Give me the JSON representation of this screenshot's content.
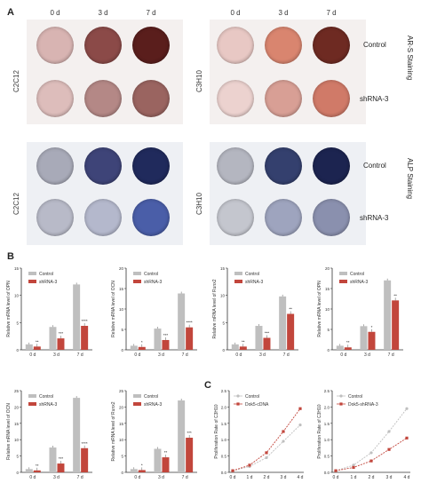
{
  "panels": {
    "a": "A",
    "b": "B",
    "c": "C"
  },
  "timepoints": [
    "0 d",
    "3 d",
    "7 d"
  ],
  "cell_lines": {
    "left": "C2C12",
    "right": "C3H10"
  },
  "groups": {
    "control": "Control",
    "shrna": "shRNA-3"
  },
  "stains": {
    "ars": "AR-S Staining",
    "alp": "ALP Staining"
  },
  "colors": {
    "control": "#bfbfbf",
    "shrna": "#c2463c",
    "ars_c2c12_ctrl": [
      "#d8b4b2",
      "#8b4a48",
      "#5a1e1c"
    ],
    "ars_c2c12_sh": [
      "#ddbdbb",
      "#b48886",
      "#9a6460"
    ],
    "ars_c3h10_ctrl": [
      "#e8c8c4",
      "#d9856f",
      "#6e2a22"
    ],
    "ars_c3h10_sh": [
      "#ecd2cf",
      "#d89f95",
      "#d07a68"
    ],
    "alp_c2c12_ctrl": [
      "#a8aab8",
      "#3e4478",
      "#202a5c"
    ],
    "alp_c2c12_sh": [
      "#b8bac8",
      "#b4b8cc",
      "#4a5ea8"
    ],
    "alp_c3h10_ctrl": [
      "#b4b6c0",
      "#34406e",
      "#1c2450"
    ],
    "alp_c3h10_sh": [
      "#c4c6ce",
      "#9ea4be",
      "#8a90ae"
    ]
  },
  "chart_data": [
    {
      "type": "bar",
      "ylabel": "Relative mRNA level of OPN",
      "categories": [
        "0 d",
        "3 d",
        "7 d"
      ],
      "ylim": [
        0,
        15
      ],
      "yticks": [
        0,
        5,
        10,
        15
      ],
      "series": [
        {
          "name": "Control",
          "values": [
            1.0,
            4.2,
            12.0
          ]
        },
        {
          "name": "shRNA-3",
          "values": [
            0.6,
            2.1,
            4.4
          ]
        }
      ],
      "annotations": [
        "**",
        "***",
        "****"
      ]
    },
    {
      "type": "bar",
      "ylabel": "Relative mRNA level of OCN",
      "categories": [
        "0 d",
        "3 d",
        "7 d"
      ],
      "ylim": [
        0,
        20
      ],
      "yticks": [
        0,
        5,
        10,
        15,
        20
      ],
      "series": [
        {
          "name": "Control",
          "values": [
            1.0,
            5.2,
            13.8
          ]
        },
        {
          "name": "shRNA-3",
          "values": [
            0.7,
            2.4,
            5.5
          ]
        }
      ],
      "annotations": [
        "*",
        "***",
        "****"
      ]
    },
    {
      "type": "bar",
      "ylabel": "Relative mRNA level of Runx2",
      "categories": [
        "0 d",
        "3 d",
        "7 d"
      ],
      "ylim": [
        0,
        15
      ],
      "yticks": [
        0,
        5,
        10,
        15
      ],
      "series": [
        {
          "name": "Control",
          "values": [
            1.0,
            4.4,
            9.8
          ]
        },
        {
          "name": "shRNA-3",
          "values": [
            0.6,
            2.2,
            6.6
          ]
        }
      ],
      "annotations": [
        "**",
        "***",
        "**"
      ]
    },
    {
      "type": "bar",
      "ylabel": "Relative mRNA level of OPN",
      "categories": [
        "0 d",
        "3 d",
        "7 d"
      ],
      "ylim": [
        0,
        20
      ],
      "yticks": [
        0,
        5,
        10,
        15,
        20
      ],
      "series": [
        {
          "name": "Control",
          "values": [
            1.0,
            5.8,
            17.0
          ]
        },
        {
          "name": "shRNA-3",
          "values": [
            0.6,
            4.4,
            12.1
          ]
        }
      ],
      "annotations": [
        "**",
        "*",
        "**"
      ]
    },
    {
      "type": "bar",
      "ylabel": "Relative mRNA level of OCN",
      "categories": [
        "0 d",
        "3 d",
        "7 d"
      ],
      "ylim": [
        0,
        25
      ],
      "yticks": [
        0,
        5,
        10,
        15,
        20,
        25
      ],
      "series": [
        {
          "name": "Control",
          "values": [
            1.0,
            7.6,
            22.8
          ]
        },
        {
          "name": "shRNA-3",
          "values": [
            0.6,
            2.7,
            7.4
          ]
        }
      ],
      "annotations": [
        "**",
        "***",
        "****"
      ]
    },
    {
      "type": "bar",
      "ylabel": "Relative mRNA level of Runx2",
      "categories": [
        "0 d",
        "3 d",
        "7 d"
      ],
      "ylim": [
        0,
        25
      ],
      "yticks": [
        0,
        5,
        10,
        15,
        20,
        25
      ],
      "series": [
        {
          "name": "Control",
          "values": [
            1.0,
            7.2,
            22.0
          ]
        },
        {
          "name": "shRNA-3",
          "values": [
            0.7,
            4.6,
            10.6
          ]
        }
      ],
      "annotations": [
        "*",
        "**",
        "***"
      ]
    },
    {
      "type": "line",
      "ylabel": "Proliferation Rate of C3H10",
      "x": [
        "0 d",
        "1 d",
        "2 d",
        "3 d",
        "4 d"
      ],
      "ylim": [
        0,
        2.5
      ],
      "yticks": [
        0.0,
        0.5,
        1.0,
        1.5,
        2.0,
        2.5
      ],
      "series": [
        {
          "name": "Control",
          "values": [
            0.05,
            0.18,
            0.45,
            0.95,
            1.45
          ]
        },
        {
          "name": "Dok5-cDNA",
          "values": [
            0.05,
            0.22,
            0.6,
            1.25,
            1.95
          ]
        }
      ]
    },
    {
      "type": "line",
      "ylabel": "Proliferation Rate of C3H10",
      "x": [
        "0 d",
        "1 d",
        "2 d",
        "3 d",
        "4 d"
      ],
      "ylim": [
        0,
        2.5
      ],
      "yticks": [
        0.0,
        0.5,
        1.0,
        1.5,
        2.0,
        2.5
      ],
      "series": [
        {
          "name": "Control",
          "values": [
            0.05,
            0.22,
            0.6,
            1.25,
            1.95
          ]
        },
        {
          "name": "Dok5-shRNA-3",
          "values": [
            0.05,
            0.15,
            0.35,
            0.7,
            1.05
          ]
        }
      ]
    }
  ]
}
